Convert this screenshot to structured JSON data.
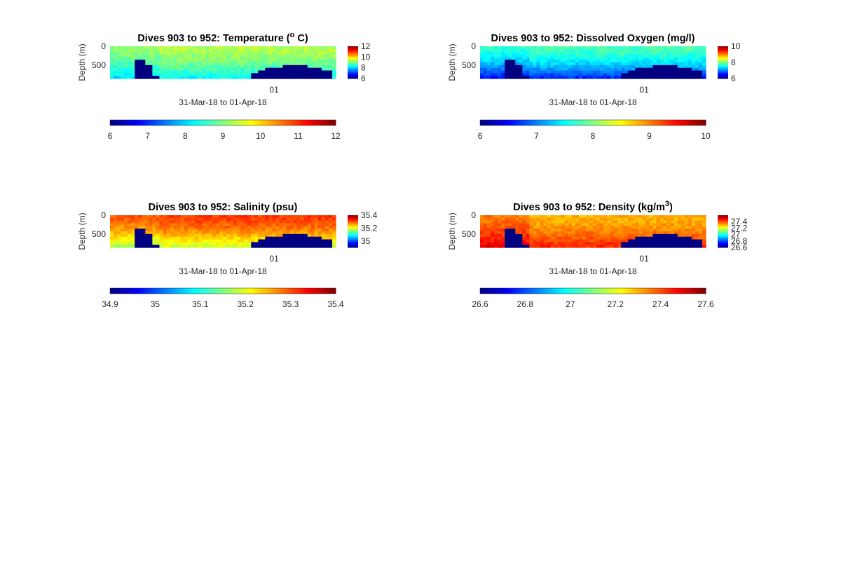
{
  "chart_data": [
    {
      "type": "heatmap",
      "title": "Dives 903 to 952: Temperature (",
      "title_sup": "o",
      "title_end": " C)",
      "ylabel": "Depth (m)",
      "xlabel": "31-Mar-18 to 01-Apr-18",
      "x_ticks": [
        "01"
      ],
      "y_ticks": [
        "0",
        "500"
      ],
      "y_range": [
        0,
        850
      ],
      "colormap": "jet",
      "clim": [
        6,
        12
      ],
      "side_colorbar_ticks": [
        "12",
        "10",
        "8",
        "6"
      ],
      "horizontal_colorbar_ticks": [
        "6",
        "7",
        "8",
        "9",
        "10",
        "11",
        "12"
      ],
      "field": {
        "surface": 9.3,
        "deep": 8.2,
        "dive_split": 0.22
      }
    },
    {
      "type": "heatmap",
      "title": "Dives 903 to 952: Dissolved Oxygen (mg/l)",
      "ylabel": "Depth (m)",
      "xlabel": "31-Mar-18 to 01-Apr-18",
      "x_ticks": [
        "01"
      ],
      "y_ticks": [
        "0",
        "500"
      ],
      "y_range": [
        0,
        850
      ],
      "colormap": "jet",
      "clim": [
        6,
        10
      ],
      "side_colorbar_ticks": [
        "10",
        "8",
        "6"
      ],
      "horizontal_colorbar_ticks": [
        "6",
        "7",
        "8",
        "9",
        "10"
      ],
      "field": {
        "surface": 7.8,
        "deep": 6.6,
        "dive_split": 0.22
      }
    },
    {
      "type": "heatmap",
      "title": "Dives 903 to 952: Salinity (psu)",
      "ylabel": "Depth (m)",
      "xlabel": "31-Mar-18 to 01-Apr-18",
      "x_ticks": [
        "01"
      ],
      "y_ticks": [
        "0",
        "500"
      ],
      "y_range": [
        0,
        850
      ],
      "colormap": "jet",
      "clim": [
        34.9,
        35.4
      ],
      "side_colorbar_ticks": [
        "35.4",
        "35.2",
        "35"
      ],
      "horizontal_colorbar_ticks": [
        "34.9",
        "35",
        "35.1",
        "35.2",
        "35.3",
        "35.4"
      ],
      "field": {
        "surface": 35.31,
        "deep": 35.18,
        "dive_split": 0.22
      }
    },
    {
      "type": "heatmap",
      "title": "Dives 903 to 952: Density (kg/m",
      "title_sup": "3",
      "title_end": ")",
      "ylabel": "Depth (m)",
      "xlabel": "31-Mar-18 to 01-Apr-18",
      "x_ticks": [
        "01"
      ],
      "y_ticks": [
        "0",
        "500"
      ],
      "y_range": [
        0,
        850
      ],
      "colormap": "jet",
      "clim": [
        26.6,
        27.6
      ],
      "side_colorbar_ticks": [
        "27.4",
        "27.2",
        "27",
        "26.8",
        "26.6"
      ],
      "horizontal_colorbar_ticks": [
        "26.6",
        "26.8",
        "27",
        "27.2",
        "27.4",
        "27.6"
      ],
      "field": {
        "surface": 27.3,
        "deep": 27.45,
        "dive_split": 0.22
      }
    }
  ]
}
